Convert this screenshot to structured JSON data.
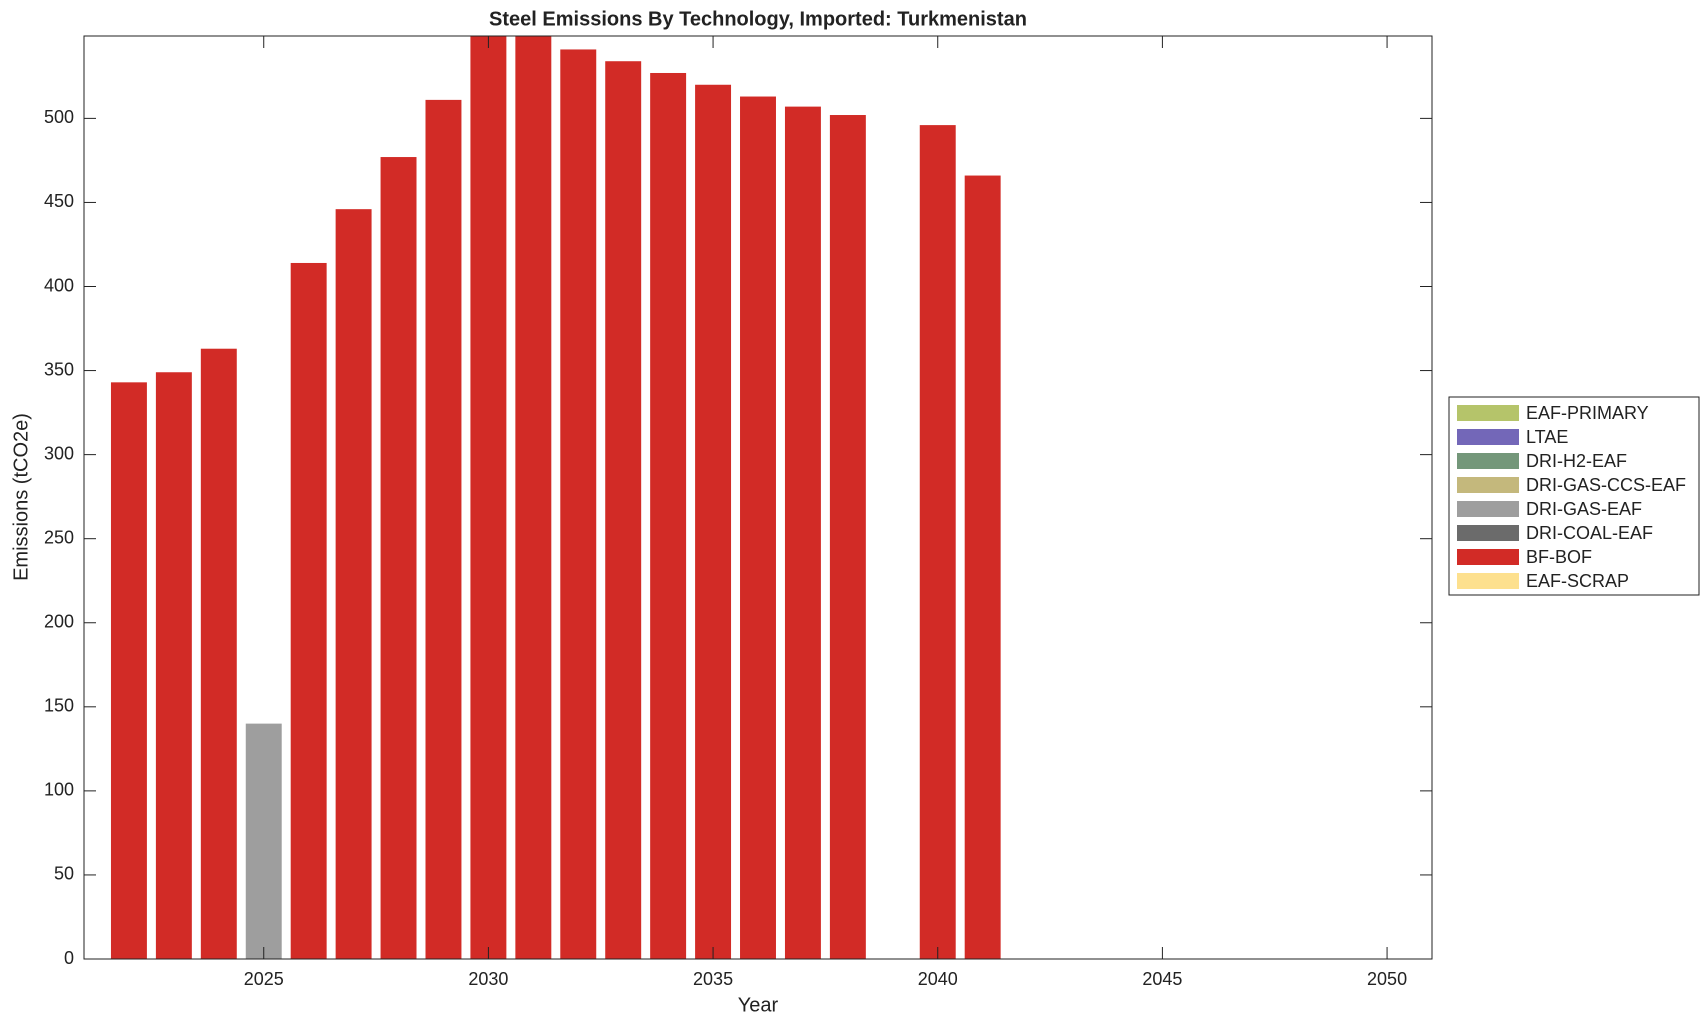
{
  "chart_data": {
    "type": "stacked-bar",
    "title": "Steel Emissions By Technology, Imported: Turkmenistan",
    "x_label": "Year",
    "y_label": "Emissions (tCO2e)",
    "x": [
      2022,
      2023,
      2024,
      2025,
      2026,
      2027,
      2028,
      2029,
      2030,
      2031,
      2032,
      2033,
      2034,
      2035,
      2036,
      2037,
      2038,
      2039,
      2040,
      2041,
      2042,
      2043,
      2044,
      2045,
      2046,
      2047,
      2048,
      2049,
      2050
    ],
    "xlim": [
      2021,
      2051
    ],
    "xticks": [
      2025,
      2030,
      2035,
      2040,
      2045,
      2050
    ],
    "ylim": [
      0,
      549
    ],
    "yticks": [
      0,
      50,
      100,
      150,
      200,
      250,
      300,
      350,
      400,
      450,
      500
    ],
    "series": [
      {
        "name": "EAF-PRIMARY",
        "color": "#b5c46a",
        "values": [
          0,
          0,
          0,
          0,
          0,
          0,
          0,
          0,
          0,
          0,
          0,
          0,
          0,
          0,
          0,
          0,
          0,
          0,
          0,
          0,
          0,
          0,
          0,
          0,
          0,
          0,
          0,
          0,
          0
        ]
      },
      {
        "name": "LTAE",
        "color": "#7367b8",
        "values": [
          0,
          0,
          0,
          0,
          0,
          0,
          0,
          0,
          0,
          0,
          0,
          0,
          0,
          0,
          0,
          0,
          0,
          0,
          0,
          0,
          0,
          0,
          0,
          0,
          0,
          0,
          0,
          0,
          0
        ]
      },
      {
        "name": "DRI-H2-EAF",
        "color": "#74977a",
        "values": [
          0,
          0,
          0,
          0,
          0,
          0,
          0,
          0,
          0,
          0,
          0,
          0,
          0,
          0,
          0,
          0,
          0,
          0,
          0,
          0,
          0,
          0,
          0,
          0,
          0,
          0,
          0,
          0,
          0
        ]
      },
      {
        "name": "DRI-GAS-CCS-EAF",
        "color": "#c4b87c",
        "values": [
          0,
          0,
          0,
          0,
          0,
          0,
          0,
          0,
          0,
          0,
          0,
          0,
          0,
          0,
          0,
          0,
          0,
          0,
          0,
          0,
          0,
          0,
          0,
          0,
          0,
          0,
          0,
          0,
          0
        ]
      },
      {
        "name": "DRI-GAS-EAF",
        "color": "#9e9e9e",
        "values": [
          0,
          0,
          0,
          140,
          0,
          0,
          0,
          0,
          0,
          0,
          0,
          0,
          0,
          0,
          0,
          0,
          0,
          0,
          0,
          0,
          0,
          0,
          0,
          0,
          0,
          0,
          0,
          0,
          0
        ]
      },
      {
        "name": "DRI-COAL-EAF",
        "color": "#6b6b6b",
        "values": [
          0,
          0,
          0,
          0,
          0,
          0,
          0,
          0,
          0,
          0,
          0,
          0,
          0,
          0,
          0,
          0,
          0,
          0,
          0,
          0,
          0,
          0,
          0,
          0,
          0,
          0,
          0,
          0,
          0
        ]
      },
      {
        "name": "BF-BOF",
        "color": "#d22b26",
        "values": [
          343,
          349,
          363,
          0,
          414,
          446,
          477,
          511,
          555,
          555,
          541,
          534,
          527,
          520,
          513,
          507,
          502,
          0,
          496,
          466,
          0,
          0,
          0,
          0,
          0,
          0,
          0,
          0,
          0
        ]
      },
      {
        "name": "EAF-SCRAP",
        "color": "#fde08e",
        "values": [
          0,
          0,
          0,
          0,
          0,
          0,
          0,
          0,
          0,
          0,
          0,
          0,
          0,
          0,
          0,
          0,
          0,
          0,
          0,
          0,
          0,
          0,
          0,
          0,
          0,
          0,
          0,
          0,
          0
        ]
      }
    ]
  }
}
